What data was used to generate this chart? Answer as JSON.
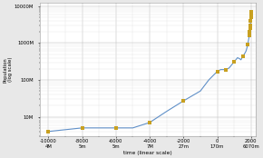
{
  "title": "",
  "xlabel": "time (linear scale)",
  "ylabel": "Population\n(log scale)",
  "xlim": [
    -10500,
    2300
  ],
  "ylim_log": [
    3000000,
    12000000000.0
  ],
  "bg_color": "#e8e8e8",
  "plot_bg": "#ffffff",
  "line_color": "#6090c8",
  "marker_color": "#c8a020",
  "data_points": [
    [
      -10000,
      4000000
    ],
    [
      -8000,
      5000000
    ],
    [
      -6000,
      5000000
    ],
    [
      -5000,
      5000000
    ],
    [
      -4000,
      7000000
    ],
    [
      -3000,
      14000000
    ],
    [
      -2000,
      27000000
    ],
    [
      -1000,
      50000000
    ],
    [
      -500,
      100000000
    ],
    [
      0,
      170000000
    ],
    [
      200,
      190000000
    ],
    [
      500,
      190000000
    ],
    [
      700,
      210000000
    ],
    [
      1000,
      310000000
    ],
    [
      1200,
      400000000
    ],
    [
      1340,
      370000000
    ],
    [
      1400,
      350000000
    ],
    [
      1500,
      425000000
    ],
    [
      1600,
      500000000
    ],
    [
      1650,
      545000000
    ],
    [
      1700,
      600000000
    ],
    [
      1750,
      720000000
    ],
    [
      1800,
      900000000
    ],
    [
      1850,
      1200000000
    ],
    [
      1900,
      1600000000
    ],
    [
      1927,
      2000000000
    ],
    [
      1950,
      2500000000
    ],
    [
      1960,
      3000000000
    ],
    [
      1974,
      4000000000
    ],
    [
      1987,
      5000000000
    ],
    [
      1999,
      6000000000
    ],
    [
      2011,
      7000000000
    ]
  ],
  "marker_points": [
    [
      -10000,
      4000000
    ],
    [
      -8000,
      5000000
    ],
    [
      -6000,
      5000000
    ],
    [
      -4000,
      7000000
    ],
    [
      -2000,
      27000000
    ],
    [
      0,
      170000000
    ],
    [
      500,
      190000000
    ],
    [
      1000,
      310000000
    ],
    [
      1500,
      425000000
    ],
    [
      1800,
      900000000
    ],
    [
      1900,
      1600000000
    ],
    [
      1927,
      2000000000
    ],
    [
      1950,
      2500000000
    ],
    [
      1960,
      3000000000
    ],
    [
      1974,
      4000000000
    ],
    [
      1987,
      5000000000
    ],
    [
      1999,
      6000000000
    ],
    [
      2011,
      7000000000
    ]
  ],
  "yticks": [
    10000000.0,
    100000000.0,
    1000000000.0,
    10000000000.0
  ],
  "ytick_labels": [
    "10M",
    "100M",
    "1000M",
    "10000M"
  ],
  "xtick_vals": [
    -10000,
    -8000,
    -6000,
    -4000,
    -2000,
    0,
    2000
  ],
  "xtick_top": [
    "-10000",
    "-8000",
    "-6000",
    "-4000",
    "-2000",
    "0",
    "2000"
  ],
  "xtick_bot": [
    "4M",
    "5m",
    "5m",
    "7M",
    "27m",
    "170m",
    "6070m"
  ]
}
